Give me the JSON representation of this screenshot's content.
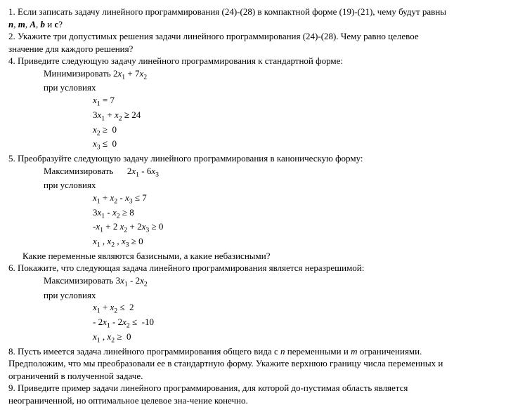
{
  "lines": [
    {
      "cls": "",
      "html": "1. Если записать задачу линейного программирования (24)-(28) в компактной форме (19)-(21), чему будут равны"
    },
    {
      "cls": "",
      "html": "<b><i>n</i></b>, <b><i>m</i></b>, <b><i>A</i></b>, <b><i>b</i></b> и <b>c</b>?"
    },
    {
      "cls": "",
      "html": "2. Укажите три допустимых решения задачи линейного программирования (24)-(28). Чему равно целевое"
    },
    {
      "cls": "",
      "html": "значение для каждого решения?"
    },
    {
      "cls": "",
      "html": "4. Приведите следующую задачу линейного программирования к стандартной форме:"
    },
    {
      "cls": "indent1",
      "html": "Минимизировать 2<i>x</i><sub>1</sub> + 7<i>x</i><sub>2</sub>"
    },
    {
      "cls": "indent1",
      "html": "при условиях"
    },
    {
      "cls": "indent2",
      "html": "<i>x</i><sub>1</sub> = 7"
    },
    {
      "cls": "indent2",
      "html": "3<i>x</i><sub>1</sub> + <i>x</i><sub>2</sub> <b>≥</b> 24"
    },
    {
      "cls": "indent2",
      "html": "<i>x</i><sub>2</sub> ≥ &nbsp;0"
    },
    {
      "cls": "indent2",
      "html": "<i>x</i><sub>3</sub> <b>≤</b> &nbsp;0"
    },
    {
      "cls": "",
      "html": "5. Преобразуйте следующую задачу линейного программирования в каноническую форму:"
    },
    {
      "cls": "indent1",
      "html": "Максимизировать &nbsp;&nbsp;&nbsp;&nbsp; 2<i>x</i><sub>1</sub> - 6<i>x</i><sub>3</sub>"
    },
    {
      "cls": "indent1",
      "html": "при условиях"
    },
    {
      "cls": "indent2",
      "html": "<i>x</i><sub>1</sub> + <i>x</i><sub>2</sub> - <i>x</i><sub>3</sub> ≤ 7"
    },
    {
      "cls": "indent2",
      "html": "3<i>x</i><sub>1</sub> - <i>x</i><sub>2</sub> ≥ 8"
    },
    {
      "cls": "indent2",
      "html": "-<i>x</i><sub>1</sub> + 2 <i>x</i><sub>2</sub> + 2<i>x</i><sub>3</sub> ≥ 0"
    },
    {
      "cls": "indent2",
      "html": "<i>x</i><sub>1</sub> , <i>x</i><sub>2</sub> , <i>x</i><sub>3</sub> ≥ 0"
    },
    {
      "cls": "indent3",
      "html": "Какие переменные являются базисными, а какие небазисными?"
    },
    {
      "cls": "",
      "html": "6. Покажите, что следующая задача линейного программирования является неразрешимой:"
    },
    {
      "cls": "indent1",
      "html": "Максимизировать 3<i>x</i><sub>1</sub> - 2<i>x</i><sub>2</sub>"
    },
    {
      "cls": "indent1",
      "html": "при условиях"
    },
    {
      "cls": "indent2",
      "html": "<i>x</i><sub>1</sub> + <i>x</i><sub>2</sub> ≤ &nbsp;2"
    },
    {
      "cls": "indent2",
      "html": "- 2<i>x</i><sub>1</sub> - 2<i>x</i><sub>2</sub> ≤ &nbsp;-10"
    },
    {
      "cls": "indent2",
      "html": "<i>x</i><sub>1</sub> , <i>x</i><sub>2</sub> ≥ &nbsp;0"
    },
    {
      "cls": "",
      "html": "8. Пусть имеется задача линейного программирования общего вида с <i>n</i> переменными и <i>m</i> ограничениями."
    },
    {
      "cls": "",
      "html": "Предположим, что мы преобразовали ее в стандартную форму. Укажите верхнюю границу числа переменных и"
    },
    {
      "cls": "",
      "html": "ограничений в полученной задаче."
    },
    {
      "cls": "",
      "html": "9. Приведите пример задачи линейного программирования, для которой до-пустимая область является"
    },
    {
      "cls": "",
      "html": "неограниченной, но оптимальное целевое зна-чение конечно."
    }
  ]
}
